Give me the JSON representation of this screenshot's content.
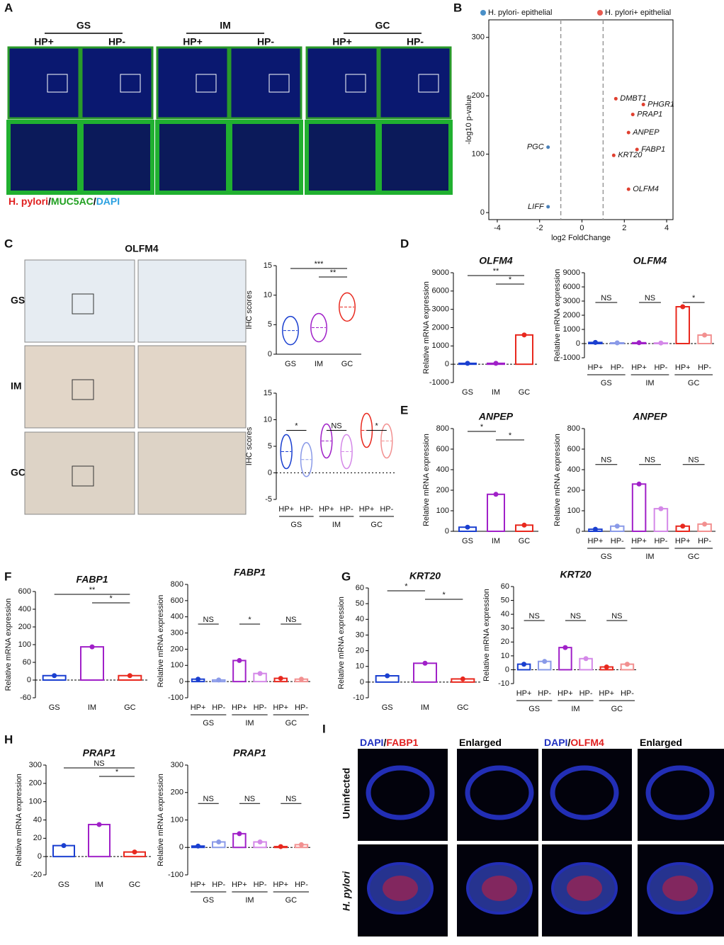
{
  "panels": {
    "A": {
      "letter": "A",
      "groups": [
        "GS",
        "IM",
        "GC"
      ],
      "columns": [
        "HP+",
        "HP-",
        "HP+",
        "HP-",
        "HP+",
        "HP-"
      ],
      "caption": [
        "H. pylori",
        "/",
        "MUC5AC",
        "/",
        "DAPI"
      ]
    },
    "B": {
      "letter": "B",
      "legend": [
        "H. pylori- epithelial",
        "H. pylori+ epithelial"
      ],
      "xlabel": "log2 FoldChange",
      "ylabel": "-log10 p-value",
      "xlim": [
        -4.4,
        4.3
      ],
      "ylim": [
        -12,
        330
      ],
      "xticks": [
        -4,
        -2,
        0,
        2,
        4
      ],
      "yticks": [
        0,
        100,
        200,
        300
      ],
      "cutoff_x": [
        -1,
        1
      ],
      "genes": [
        {
          "name": "DMBT1",
          "x": 1.6,
          "y": 195
        },
        {
          "name": "PHGR1",
          "x": 2.9,
          "y": 185
        },
        {
          "name": "PRAP1",
          "x": 2.4,
          "y": 168
        },
        {
          "name": "ANPEP",
          "x": 2.2,
          "y": 137
        },
        {
          "name": "FABP1",
          "x": 2.6,
          "y": 108
        },
        {
          "name": "KRT20",
          "x": 1.5,
          "y": 98
        },
        {
          "name": "OLFM4",
          "x": 2.2,
          "y": 40
        },
        {
          "name": "PGC",
          "x": -1.6,
          "y": 112
        },
        {
          "name": "LIFF",
          "x": -1.6,
          "y": 10
        }
      ]
    },
    "C": {
      "letter": "C",
      "title": "OLFM4",
      "rows": [
        "GS",
        "IM",
        "GC"
      ],
      "plot1": {
        "ylabel": "IHC scores",
        "yticks": [
          0,
          5,
          10,
          15
        ],
        "categories": [
          "GS",
          "IM",
          "GC"
        ],
        "values": [
          4,
          4.5,
          8
        ],
        "sig": [
          "***",
          "**"
        ]
      },
      "plot2": {
        "ylabel": "IHC scores",
        "yticks": [
          -5,
          0,
          5,
          10,
          15
        ],
        "categories": [
          "HP+",
          "HP-",
          "HP+",
          "HP-",
          "HP+",
          "HP-"
        ],
        "groups": [
          "GS",
          "IM",
          "GC"
        ],
        "values": [
          4,
          2.5,
          6,
          4,
          8,
          6
        ],
        "sig": [
          "*",
          "NS",
          "*"
        ]
      }
    },
    "D": {
      "letter": "D",
      "plot1": {
        "title": "OLFM4",
        "ylabel": "Relative mRNA expression",
        "yticks": [
          -1000,
          0,
          1000,
          2000,
          3000,
          6000,
          9000
        ],
        "categories": [
          "GS",
          "IM",
          "GC"
        ],
        "values": [
          50,
          50,
          1600
        ],
        "sig": [
          "**",
          "*"
        ]
      },
      "plot2": {
        "title": "OLFM4",
        "ylabel": "Relative mRNA expression",
        "yticks": [
          -1000,
          0,
          1000,
          2000,
          3000,
          6000,
          9000
        ],
        "categories": [
          "HP+",
          "HP-",
          "HP+",
          "HP-",
          "HP+",
          "HP-"
        ],
        "groups": [
          "GS",
          "IM",
          "GC"
        ],
        "values": [
          80,
          50,
          60,
          40,
          2600,
          600
        ],
        "sig": [
          "NS",
          "NS",
          "*"
        ]
      }
    },
    "E": {
      "letter": "E",
      "plot1": {
        "title": "ANPEP",
        "ylabel": "Relative mRNA expression",
        "yticks": [
          0,
          100,
          200,
          400,
          600,
          800
        ],
        "categories": [
          "GS",
          "IM",
          "GC"
        ],
        "values": [
          20,
          180,
          30
        ],
        "sig": [
          "*",
          "*"
        ]
      },
      "plot2": {
        "title": "ANPEP",
        "ylabel": "Relative mRNA expression",
        "yticks": [
          0,
          100,
          200,
          400,
          600,
          800
        ],
        "categories": [
          "HP+",
          "HP-",
          "HP+",
          "HP-",
          "HP+",
          "HP-"
        ],
        "groups": [
          "GS",
          "IM",
          "GC"
        ],
        "values": [
          10,
          25,
          260,
          110,
          25,
          35
        ],
        "sig": [
          "NS",
          "NS",
          "NS"
        ]
      }
    },
    "F": {
      "letter": "F",
      "plot1": {
        "title": "FABP1",
        "ylabel": "Relative mRNA expression",
        "yticks": [
          -60,
          0,
          60,
          100,
          200,
          400,
          600
        ],
        "categories": [
          "GS",
          "IM",
          "GC"
        ],
        "values": [
          15,
          95,
          15
        ],
        "sig": [
          "**",
          "*"
        ]
      },
      "plot2": {
        "title": "FABP1",
        "ylabel": "Relative mRNA expression",
        "yticks": [
          -100,
          0,
          100,
          200,
          300,
          400,
          600,
          800
        ],
        "categories": [
          "HP+",
          "HP-",
          "HP+",
          "HP-",
          "HP+",
          "HP-"
        ],
        "groups": [
          "GS",
          "IM",
          "GC"
        ],
        "values": [
          15,
          10,
          130,
          50,
          20,
          15
        ],
        "sig": [
          "NS",
          "*",
          "NS"
        ]
      }
    },
    "G": {
      "letter": "G",
      "plot1": {
        "title": "KRT20",
        "ylabel": "Relative mRNA expression",
        "yticks": [
          -10,
          0,
          10,
          20,
          30,
          40,
          50,
          60
        ],
        "categories": [
          "GS",
          "IM",
          "GC"
        ],
        "values": [
          4,
          12,
          2
        ],
        "sig": [
          "*",
          "*"
        ]
      },
      "plot2": {
        "title": "KRT20",
        "ylabel": "Relative mRNA expression",
        "yticks": [
          -10,
          0,
          10,
          20,
          30,
          40,
          50,
          60
        ],
        "categories": [
          "HP+",
          "HP-",
          "HP+",
          "HP-",
          "HP+",
          "HP-"
        ],
        "groups": [
          "GS",
          "IM",
          "GC"
        ],
        "values": [
          4,
          6,
          16,
          8,
          2,
          4
        ],
        "sig": [
          "NS",
          "NS",
          "NS"
        ]
      }
    },
    "H": {
      "letter": "H",
      "plot1": {
        "title": "PRAP1",
        "ylabel": "Relative mRNA expression",
        "yticks": [
          -20,
          0,
          20,
          40,
          100,
          200,
          300
        ],
        "categories": [
          "GS",
          "IM",
          "GC"
        ],
        "values": [
          12,
          35,
          5
        ],
        "sig": [
          "NS",
          "*"
        ]
      },
      "plot2": {
        "title": "PRAP1",
        "ylabel": "Relative mRNA expression",
        "yticks": [
          -100,
          0,
          100,
          200,
          300
        ],
        "categories": [
          "HP+",
          "HP-",
          "HP+",
          "HP-",
          "HP+",
          "HP-"
        ],
        "groups": [
          "GS",
          "IM",
          "GC"
        ],
        "values": [
          5,
          20,
          50,
          20,
          3,
          10
        ],
        "sig": [
          "NS",
          "NS",
          "NS"
        ]
      }
    },
    "I": {
      "letter": "I",
      "headers": [
        [
          "DAPI",
          "/",
          "FABP1"
        ],
        [
          "Enlarged"
        ],
        [
          "DAPI",
          "/",
          "OLFM4"
        ],
        [
          "Enlarged"
        ]
      ],
      "rows": [
        "Uninfected",
        "H. pylori"
      ]
    }
  }
}
